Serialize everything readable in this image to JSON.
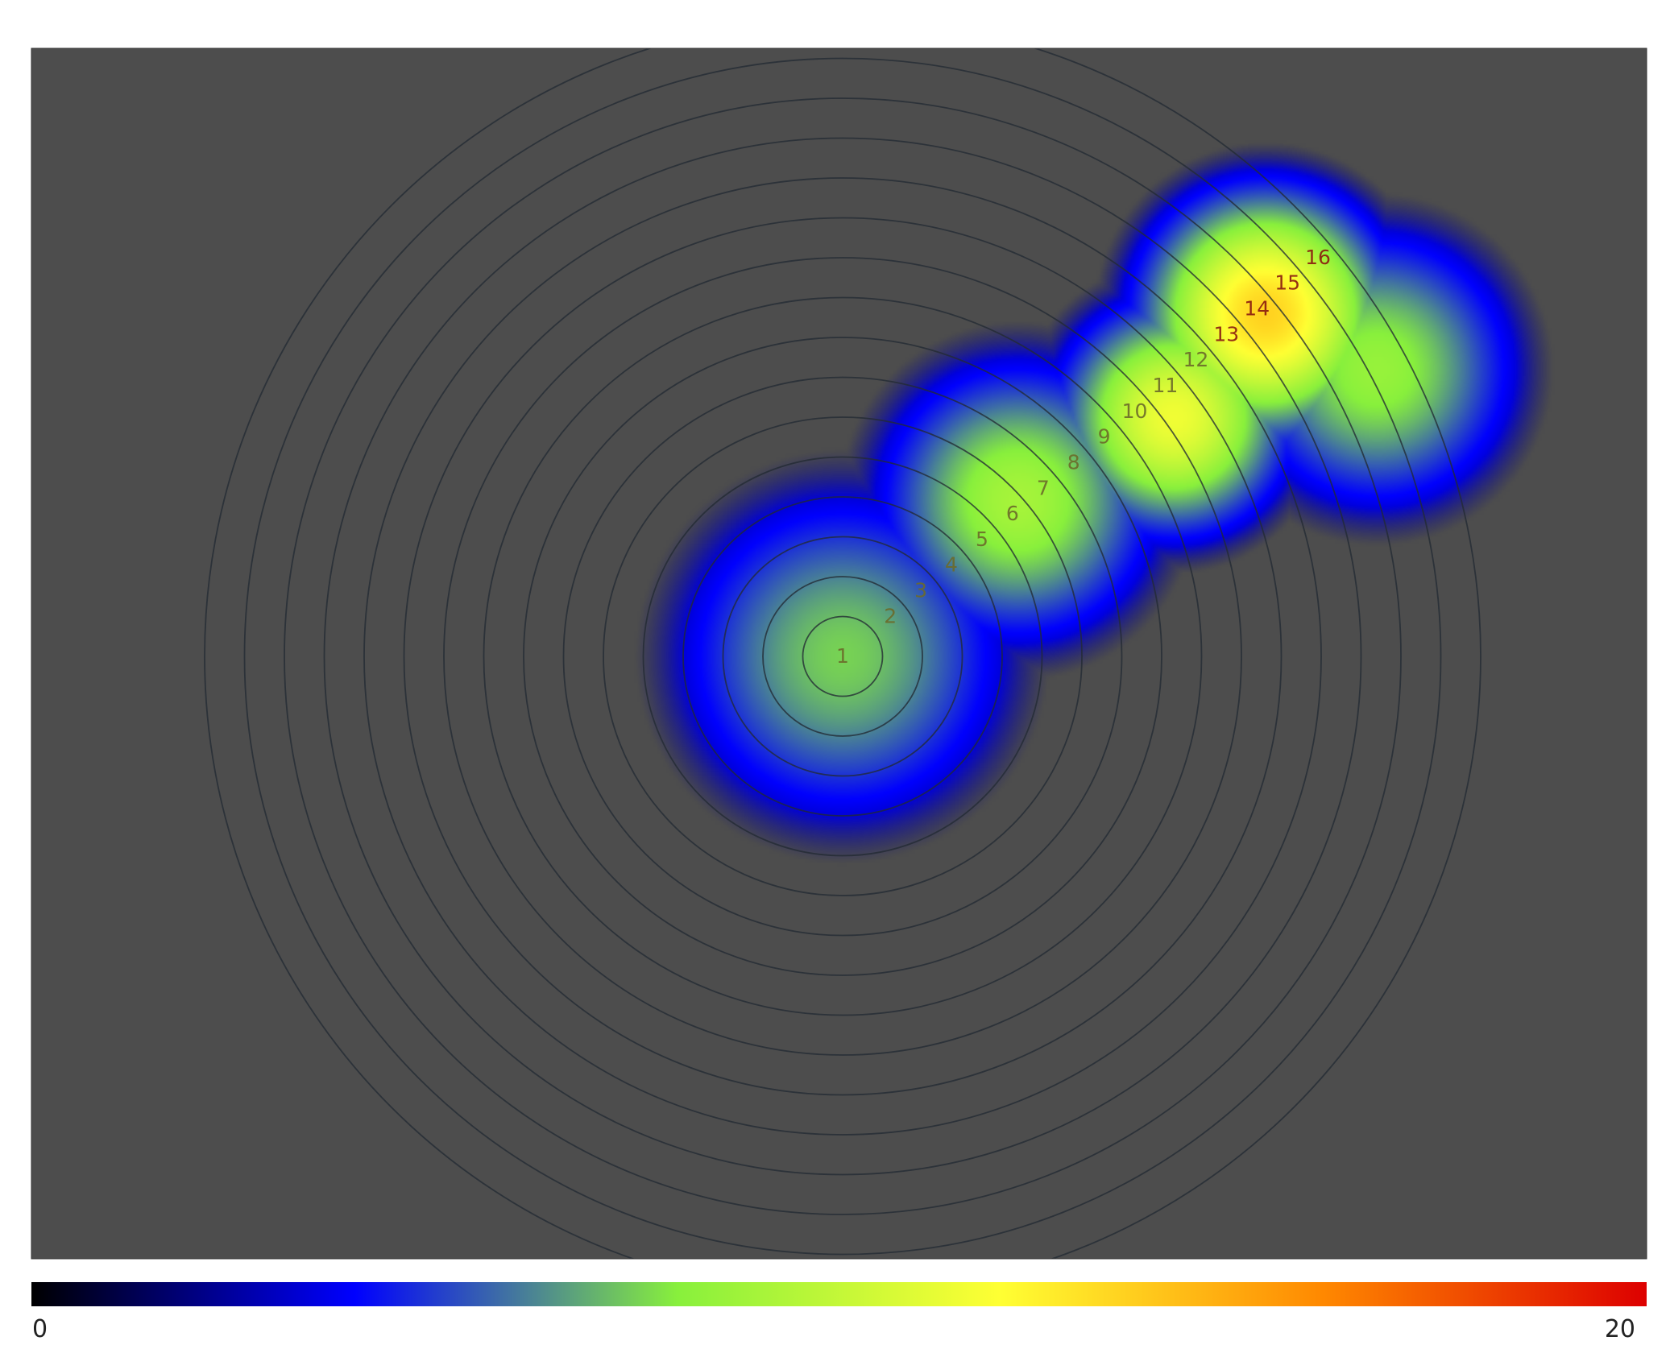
{
  "chart_data": {
    "type": "heatmap",
    "title": "",
    "xlabel": "",
    "ylabel": "",
    "background_color": "#4d4d4d",
    "ring_count": 16,
    "ring_labels": [
      "1",
      "2",
      "3",
      "4",
      "5",
      "6",
      "7",
      "8",
      "9",
      "10",
      "11",
      "12",
      "13",
      "14",
      "15",
      "16"
    ],
    "heat_blobs": [
      {
        "cx": 0,
        "cy": 0,
        "intensity": 7.5,
        "spread": 3.2
      },
      {
        "cx": 4.4,
        "cy": 3.9,
        "intensity": 9.0,
        "spread": 2.6
      },
      {
        "cx": 8.3,
        "cy": 6.0,
        "intensity": 11.5,
        "spread": 2.1
      },
      {
        "cx": 10.6,
        "cy": 8.6,
        "intensity": 13.5,
        "spread": 2.2
      },
      {
        "cx": 13.4,
        "cy": 7.2,
        "intensity": 8.5,
        "spread": 2.6
      }
    ],
    "colorbar": {
      "min": 0,
      "max": 20,
      "min_label": "0",
      "max_label": "20",
      "colors": [
        "#000000",
        "#0000ff",
        "#88f03c",
        "#ffff33",
        "#ff8800",
        "#dd0000"
      ],
      "stops": [
        0,
        4,
        8,
        12,
        16,
        20
      ]
    }
  }
}
